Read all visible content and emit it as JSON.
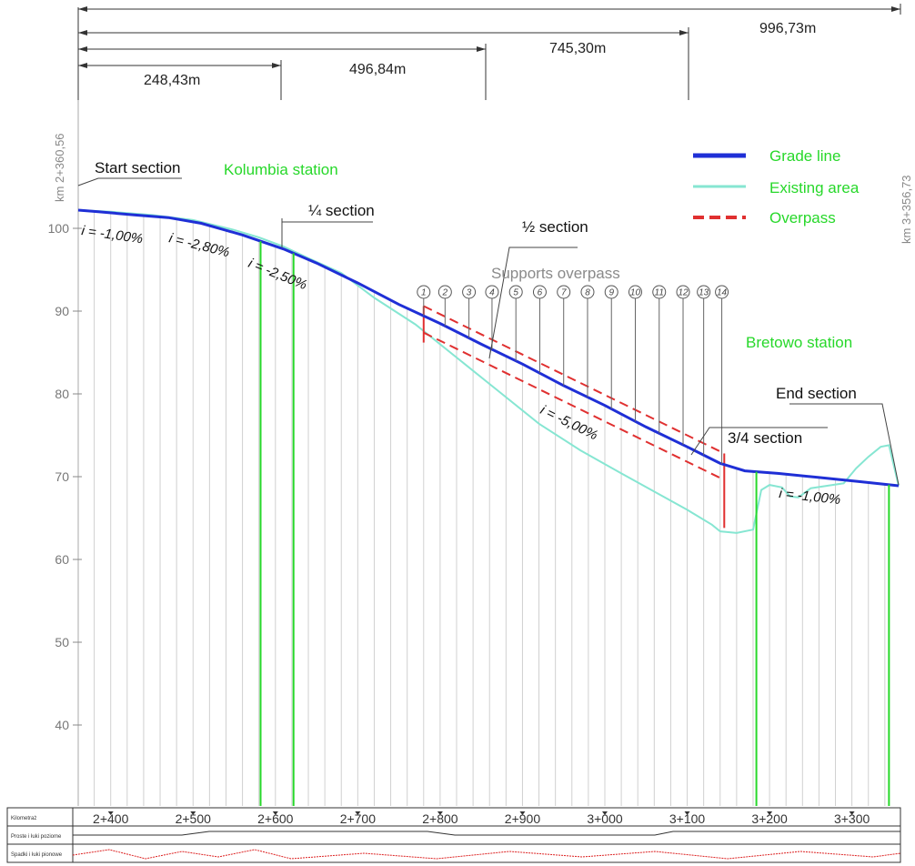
{
  "dimensions": [
    {
      "label": "248,43m"
    },
    {
      "label": "496,84m"
    },
    {
      "label": "745,30m"
    },
    {
      "label": "996,73m"
    }
  ],
  "km_start": "km 2+360,56",
  "km_end": "km 3+356,73",
  "callouts": {
    "start": "Start section",
    "quarter": "¼ section",
    "half": "½ section",
    "three_quarter": "3/4 section",
    "end": "End section",
    "supports": "Supports overpass"
  },
  "stations": {
    "kolumbia": "Kolumbia station",
    "bretowo": "Bretowo station"
  },
  "grades": [
    "i = -1,00%",
    "i = -2,80%",
    "i = -2,50%",
    "i = -5,00%",
    "i = -1,00%"
  ],
  "legend": {
    "grade_line": "Grade line",
    "existing_area": "Existing area",
    "overpass": "Overpass"
  },
  "colors": {
    "grade_line": "#1f2fd6",
    "existing_area": "#86e6d2",
    "overpass": "#e03030",
    "station": "#27d82a"
  },
  "chart_data": {
    "type": "line",
    "ylim": [
      32,
      104
    ],
    "xlim": [
      2360.56,
      3356.73
    ],
    "y_ticks": [
      "40",
      "50",
      "60",
      "70",
      "80",
      "90",
      "100"
    ],
    "x_ticks": [
      "2+400",
      "2+500",
      "2+600",
      "2+700",
      "2+800",
      "2+900",
      "3+000",
      "3+100",
      "3+200",
      "3+300"
    ],
    "grade_line": [
      [
        2360.56,
        102.2
      ],
      [
        2385,
        102.0
      ],
      [
        2430,
        101.6
      ],
      [
        2470,
        101.3
      ],
      [
        2510,
        100.6
      ],
      [
        2560,
        99.2
      ],
      [
        2610,
        97.5
      ],
      [
        2650,
        95.8
      ],
      [
        2700,
        93.4
      ],
      [
        2750,
        90.8
      ],
      [
        2800,
        88.5
      ],
      [
        2850,
        86.0
      ],
      [
        2900,
        83.6
      ],
      [
        2950,
        81.0
      ],
      [
        3000,
        78.6
      ],
      [
        3050,
        76.0
      ],
      [
        3100,
        73.6
      ],
      [
        3140,
        71.6
      ],
      [
        3170,
        70.7
      ],
      [
        3210,
        70.4
      ],
      [
        3260,
        69.9
      ],
      [
        3310,
        69.4
      ],
      [
        3356.73,
        68.9
      ]
    ],
    "existing_area": [
      [
        2360.56,
        102.2
      ],
      [
        2400,
        102.0
      ],
      [
        2450,
        101.6
      ],
      [
        2500,
        101.0
      ],
      [
        2550,
        99.8
      ],
      [
        2580,
        98.9
      ],
      [
        2610,
        97.8
      ],
      [
        2640,
        96.4
      ],
      [
        2680,
        94.6
      ],
      [
        2720,
        91.6
      ],
      [
        2770,
        88.4
      ],
      [
        2820,
        84.4
      ],
      [
        2870,
        80.4
      ],
      [
        2920,
        76.4
      ],
      [
        2970,
        73.2
      ],
      [
        3020,
        70.4
      ],
      [
        3060,
        68.2
      ],
      [
        3100,
        66.0
      ],
      [
        3130,
        64.2
      ],
      [
        3140,
        63.4
      ],
      [
        3160,
        63.2
      ],
      [
        3180,
        63.6
      ],
      [
        3190,
        68.4
      ],
      [
        3200,
        69.0
      ],
      [
        3215,
        68.7
      ],
      [
        3225,
        67.6
      ],
      [
        3235,
        67.5
      ],
      [
        3250,
        68.6
      ],
      [
        3270,
        68.9
      ],
      [
        3290,
        69.2
      ],
      [
        3305,
        71.0
      ],
      [
        3320,
        72.4
      ],
      [
        3335,
        73.6
      ],
      [
        3345,
        73.8
      ],
      [
        3356.73,
        68.9
      ]
    ],
    "overpass_upper": [
      [
        2780,
        90.6
      ],
      [
        3145,
        72.8
      ]
    ],
    "overpass_lower": [
      [
        2780,
        87.4
      ],
      [
        3145,
        69.6
      ]
    ],
    "overpass_ends": [
      [
        2780,
        86.2,
        90.6
      ],
      [
        3145,
        63.8,
        72.8
      ]
    ],
    "supports": [
      {
        "label": "1",
        "x": 2780
      },
      {
        "label": "2",
        "x": 2806
      },
      {
        "label": "3",
        "x": 2835
      },
      {
        "label": "4",
        "x": 2863
      },
      {
        "label": "5",
        "x": 2892
      },
      {
        "label": "6",
        "x": 2921
      },
      {
        "label": "7",
        "x": 2950
      },
      {
        "label": "8",
        "x": 2979
      },
      {
        "label": "9",
        "x": 3008
      },
      {
        "label": "10",
        "x": 3037
      },
      {
        "label": "11",
        "x": 3066
      },
      {
        "label": "12",
        "x": 3095
      },
      {
        "label": "13",
        "x": 3120
      },
      {
        "label": "14",
        "x": 3142
      }
    ],
    "station_posts": [
      2582,
      2622,
      3184,
      3345
    ]
  },
  "band_labels": [
    "Kilometraż",
    "Proste i łuki poziome",
    "Spadki i łuki pionowe"
  ]
}
